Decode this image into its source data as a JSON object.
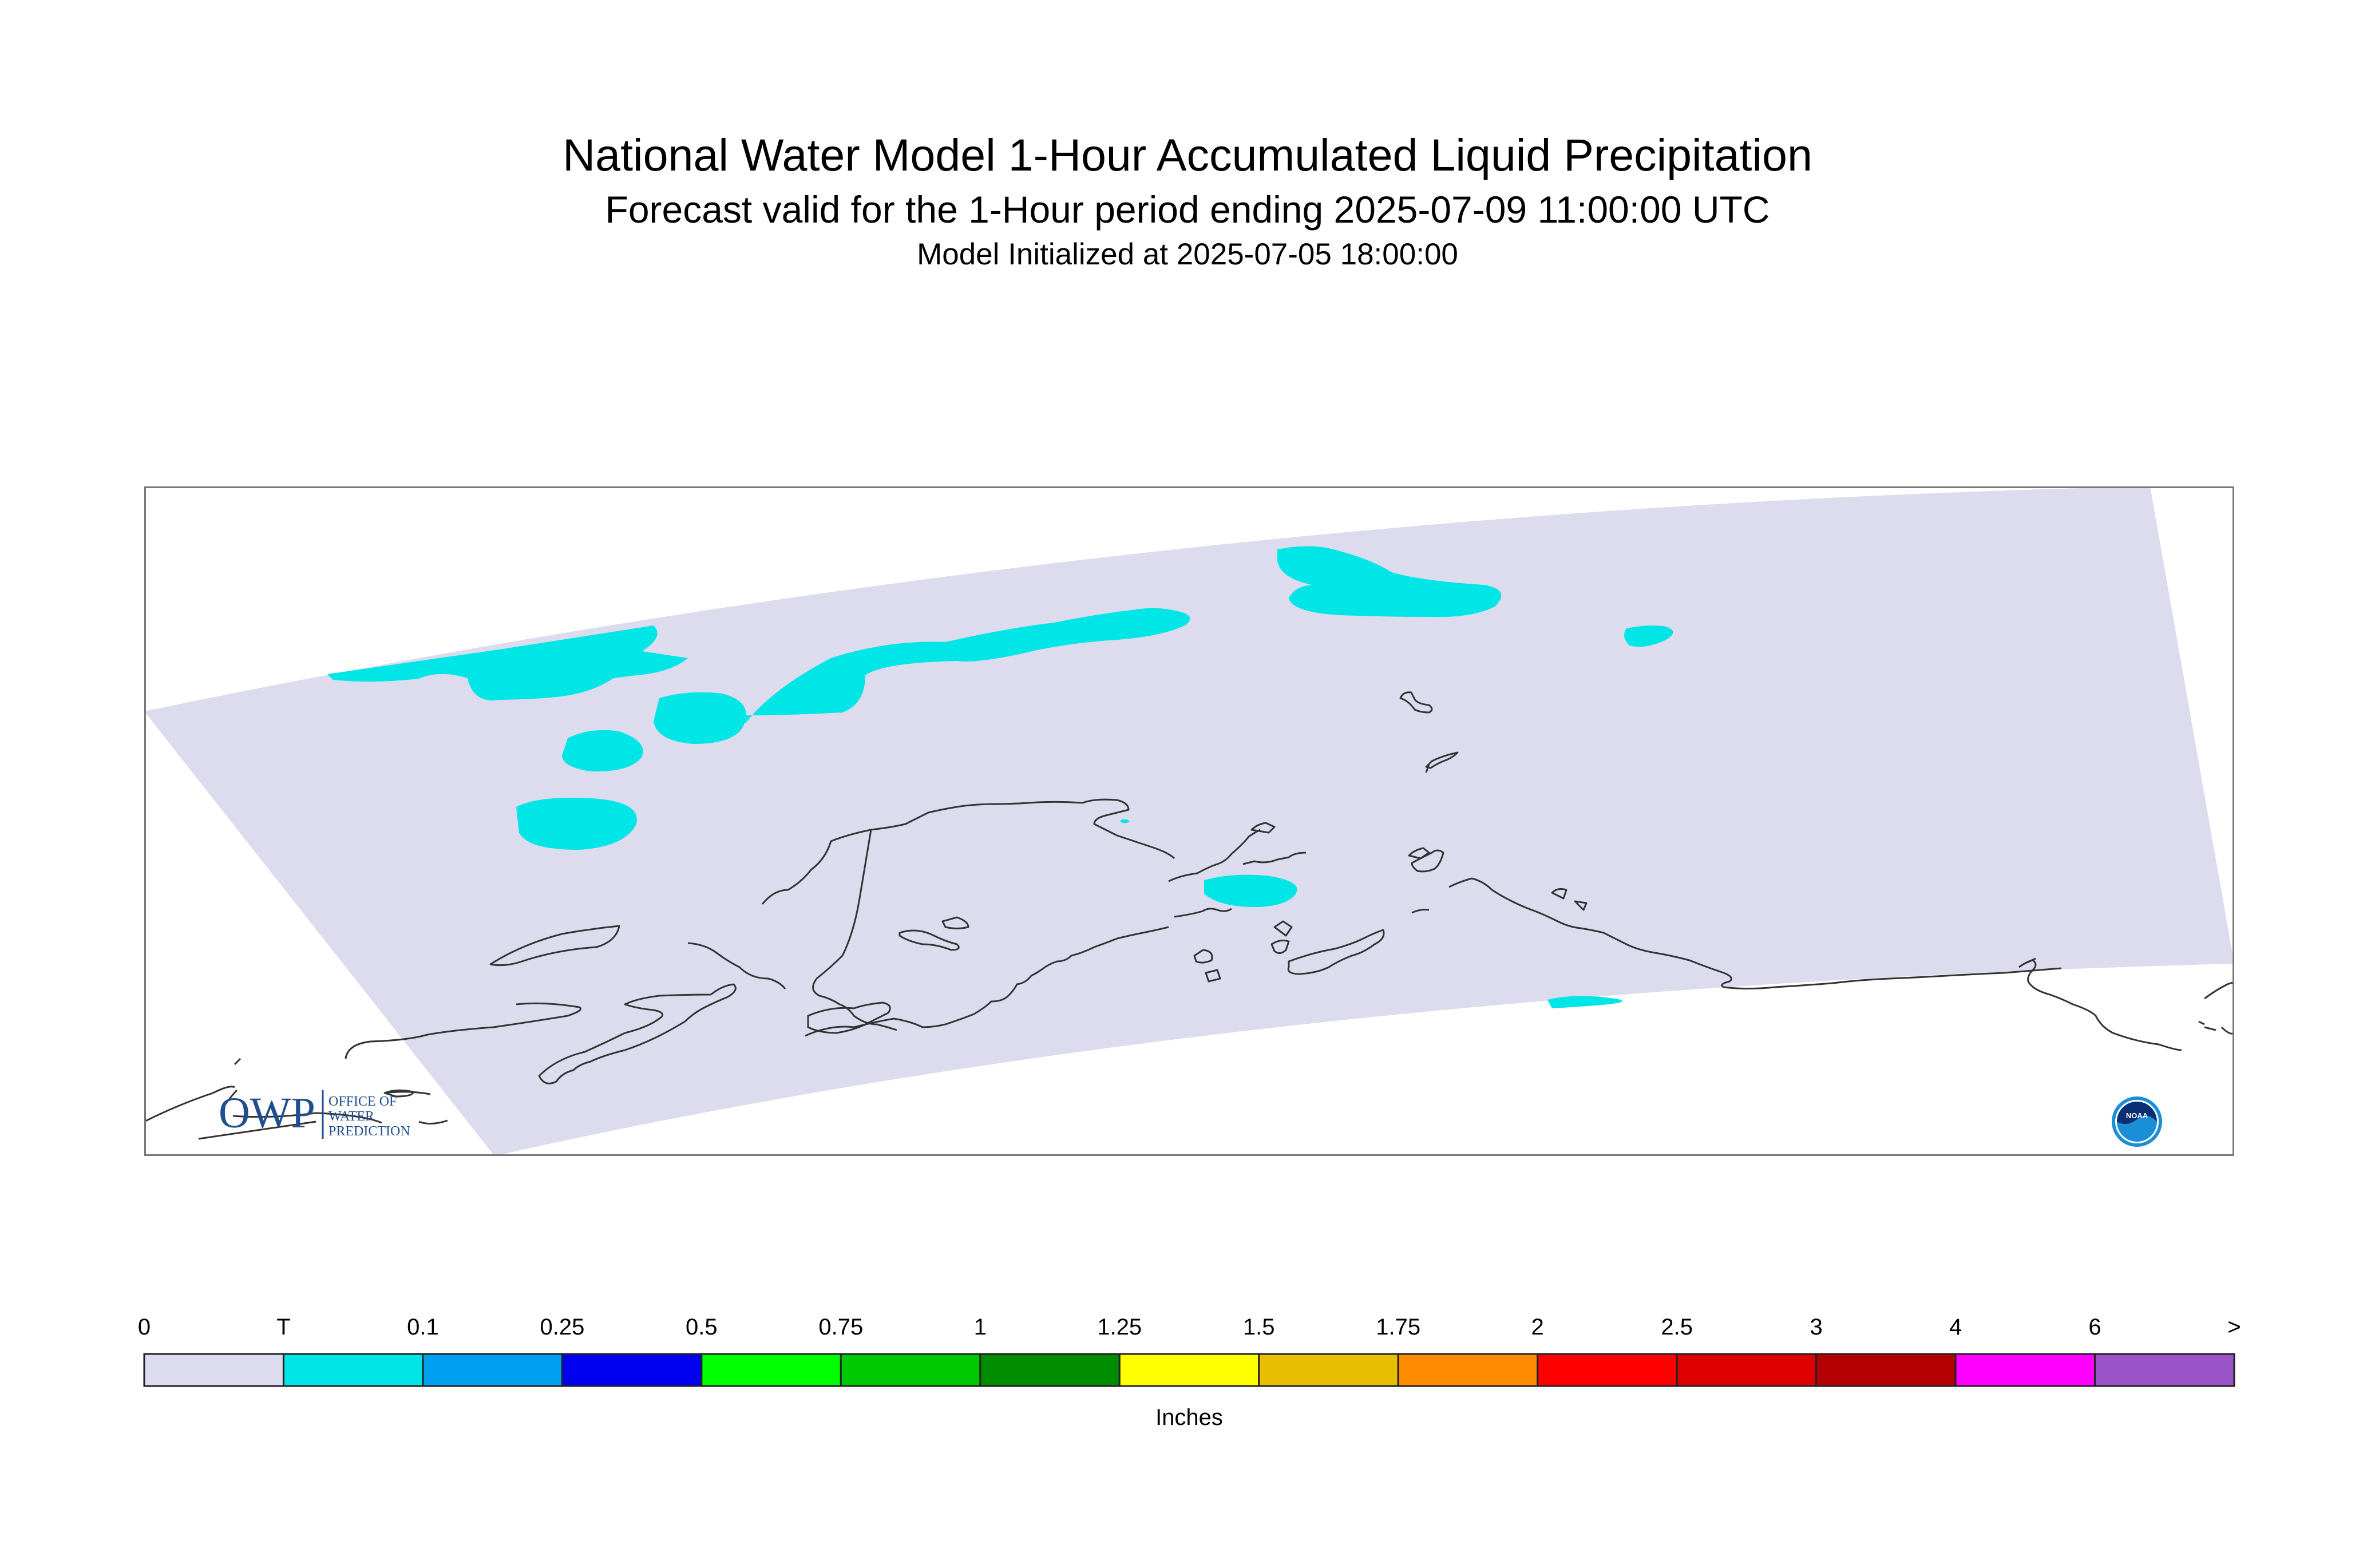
{
  "header": {
    "title": "National Water Model 1-Hour Accumulated Liquid Precipitation",
    "subtitle": "Forecast valid for the 1-Hour period ending 2025-07-09 11:00:00 UTC",
    "init_line": "Model Initialized at 2025-07-05 18:00:00"
  },
  "map": {
    "domain_fill_color": "#dcdcee",
    "coastline_color": "#333333",
    "precip_color": "#00e5e5",
    "precip_category": "T"
  },
  "logos": {
    "owp_mark": "OWP",
    "owp_text_lines": [
      "OFFICE OF",
      "WATER",
      "PREDICTION"
    ],
    "noaa_label": "NOAA",
    "owp_color": "#1f4f8f",
    "noaa_color": "#1a8fd6"
  },
  "colorbar": {
    "unit_label": "Inches",
    "tick_labels": [
      "0",
      "T",
      "0.1",
      "0.25",
      "0.5",
      "0.75",
      "1",
      "1.25",
      "1.5",
      "1.75",
      "2",
      "2.5",
      "3",
      "4",
      "6",
      ">"
    ],
    "colors": [
      "#dcdcee",
      "#00e5e5",
      "#00a0f0",
      "#0000f0",
      "#00ff00",
      "#00c800",
      "#008c00",
      "#ffff00",
      "#e6c000",
      "#ff8c00",
      "#ff0000",
      "#dc0000",
      "#b40000",
      "#ff00ff",
      "#9a54c8"
    ]
  }
}
